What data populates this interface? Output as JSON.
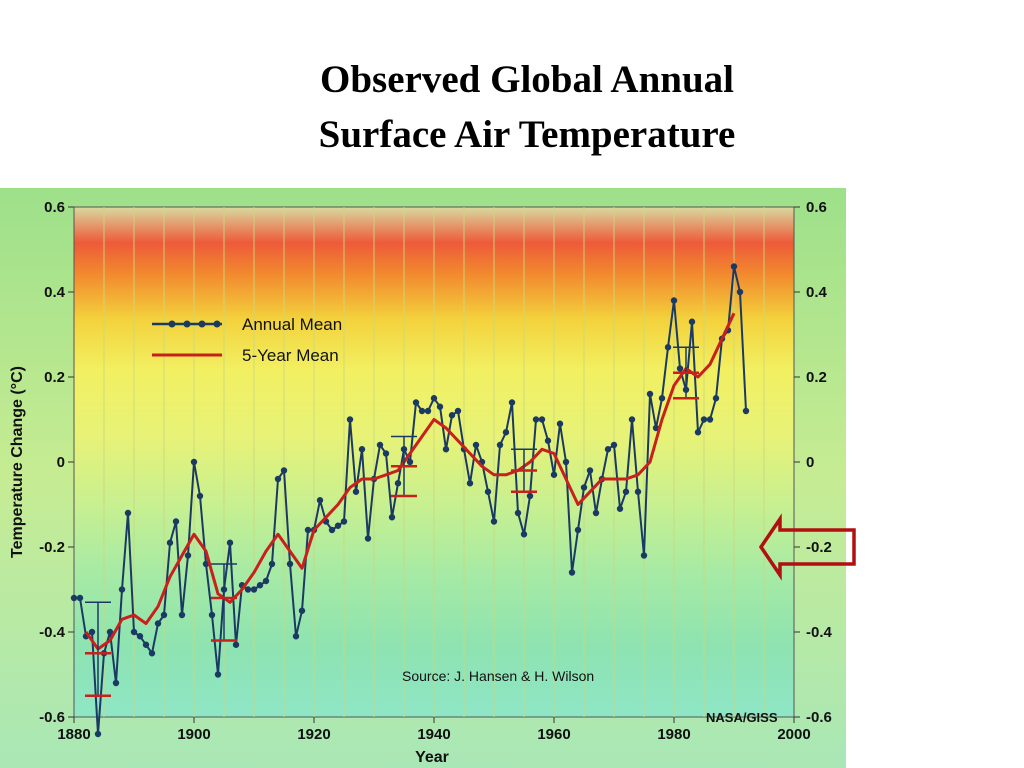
{
  "slide_title": {
    "line1": "Observed Global Annual",
    "line2": "Surface Air Temperature"
  },
  "colors": {
    "annual": "#1b3a63",
    "five_year": "#c8201c",
    "arrow": "#b01010"
  },
  "chart_data": {
    "type": "line",
    "xlabel": "Year",
    "ylabel": "Temperature Change (°C)",
    "xlim": [
      1880,
      2000
    ],
    "ylim": [
      -0.6,
      0.6
    ],
    "x_ticks": [
      "1880",
      "1900",
      "1920",
      "1940",
      "1960",
      "1980",
      "2000"
    ],
    "y_ticks": [
      "0.6",
      "0.4",
      "0.2",
      "0",
      "-0.2",
      "-0.4",
      "-0.6"
    ],
    "legend": [
      "Annual Mean",
      "5-Year Mean"
    ],
    "legend_position": "upper-left",
    "annotation": "Source:  J. Hansen & H. Wilson",
    "credit": "NASA/GISS",
    "series": [
      {
        "name": "Annual Mean",
        "x": [
          1880,
          1881,
          1882,
          1883,
          1884,
          1885,
          1886,
          1887,
          1888,
          1889,
          1890,
          1891,
          1892,
          1893,
          1894,
          1895,
          1896,
          1897,
          1898,
          1899,
          1900,
          1901,
          1902,
          1903,
          1904,
          1905,
          1906,
          1907,
          1908,
          1909,
          1910,
          1911,
          1912,
          1913,
          1914,
          1915,
          1916,
          1917,
          1918,
          1919,
          1920,
          1921,
          1922,
          1923,
          1924,
          1925,
          1926,
          1927,
          1928,
          1929,
          1930,
          1931,
          1932,
          1933,
          1934,
          1935,
          1936,
          1937,
          1938,
          1939,
          1940,
          1941,
          1942,
          1943,
          1944,
          1945,
          1946,
          1947,
          1948,
          1949,
          1950,
          1951,
          1952,
          1953,
          1954,
          1955,
          1956,
          1957,
          1958,
          1959,
          1960,
          1961,
          1962,
          1963,
          1964,
          1965,
          1966,
          1967,
          1968,
          1969,
          1970,
          1971,
          1972,
          1973,
          1974,
          1975,
          1976,
          1977,
          1978,
          1979,
          1980,
          1981,
          1982,
          1983,
          1984,
          1985,
          1986,
          1987,
          1988,
          1989,
          1990,
          1991,
          1992
        ],
        "values": [
          -0.32,
          -0.32,
          -0.41,
          -0.4,
          -0.64,
          -0.45,
          -0.4,
          -0.52,
          -0.3,
          -0.12,
          -0.4,
          -0.41,
          -0.43,
          -0.45,
          -0.38,
          -0.36,
          -0.19,
          -0.14,
          -0.36,
          -0.22,
          0.0,
          -0.08,
          -0.24,
          -0.36,
          -0.5,
          -0.3,
          -0.19,
          -0.43,
          -0.29,
          -0.3,
          -0.3,
          -0.29,
          -0.28,
          -0.24,
          -0.04,
          -0.02,
          -0.24,
          -0.41,
          -0.35,
          -0.16,
          -0.16,
          -0.09,
          -0.14,
          -0.16,
          -0.15,
          -0.14,
          0.1,
          -0.07,
          0.03,
          -0.18,
          -0.04,
          0.04,
          0.02,
          -0.13,
          -0.05,
          0.03,
          0.0,
          0.14,
          0.12,
          0.12,
          0.15,
          0.13,
          0.03,
          0.11,
          0.12,
          0.03,
          -0.05,
          0.04,
          0.0,
          -0.07,
          -0.14,
          0.04,
          0.07,
          0.14,
          -0.12,
          -0.17,
          -0.08,
          0.1,
          0.1,
          0.05,
          -0.03,
          0.09,
          0.0,
          -0.26,
          -0.16,
          -0.06,
          -0.02,
          -0.12,
          -0.04,
          0.03,
          0.04,
          -0.11,
          -0.07,
          0.1,
          -0.07,
          -0.22,
          0.16,
          0.08,
          0.15,
          0.27,
          0.38,
          0.22,
          0.17,
          0.33,
          0.07,
          0.1,
          0.1,
          0.15,
          0.29,
          0.31,
          0.46,
          0.4,
          0.12
        ]
      },
      {
        "name": "5-Year Mean",
        "x": [
          1882,
          1884,
          1886,
          1888,
          1890,
          1892,
          1894,
          1896,
          1898,
          1900,
          1902,
          1904,
          1906,
          1908,
          1910,
          1912,
          1914,
          1916,
          1918,
          1920,
          1922,
          1924,
          1926,
          1928,
          1930,
          1932,
          1934,
          1936,
          1938,
          1940,
          1942,
          1944,
          1946,
          1948,
          1950,
          1952,
          1954,
          1956,
          1958,
          1960,
          1962,
          1964,
          1966,
          1968,
          1970,
          1972,
          1974,
          1976,
          1978,
          1980,
          1982,
          1984,
          1986,
          1988,
          1990
        ],
        "values": [
          -0.4,
          -0.44,
          -0.42,
          -0.37,
          -0.36,
          -0.38,
          -0.34,
          -0.27,
          -0.22,
          -0.17,
          -0.21,
          -0.31,
          -0.33,
          -0.3,
          -0.26,
          -0.21,
          -0.17,
          -0.21,
          -0.25,
          -0.16,
          -0.13,
          -0.1,
          -0.06,
          -0.04,
          -0.04,
          -0.03,
          -0.02,
          0.02,
          0.06,
          0.1,
          0.08,
          0.05,
          0.02,
          -0.01,
          -0.03,
          -0.03,
          -0.02,
          0.0,
          0.03,
          0.02,
          -0.04,
          -0.1,
          -0.07,
          -0.04,
          -0.04,
          -0.04,
          -0.03,
          0.0,
          0.1,
          0.18,
          0.22,
          0.2,
          0.23,
          0.29,
          0.35
        ]
      }
    ],
    "error_bars": [
      {
        "x": 1884,
        "y": -0.45,
        "low": -0.55,
        "high": -0.33
      },
      {
        "x": 1905,
        "y": -0.32,
        "low": -0.42,
        "high": -0.24
      },
      {
        "x": 1935,
        "y": -0.01,
        "low": -0.08,
        "high": 0.06
      },
      {
        "x": 1955,
        "y": -0.02,
        "low": -0.07,
        "high": 0.03
      },
      {
        "x": 1982,
        "y": 0.21,
        "low": 0.15,
        "high": 0.27
      }
    ]
  }
}
